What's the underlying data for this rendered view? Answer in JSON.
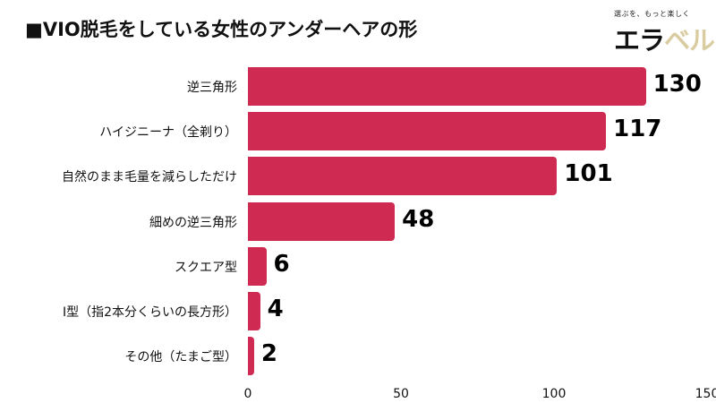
{
  "header": {
    "title": "■VIO脱毛をしている女性のアンダーヘアの形"
  },
  "logo": {
    "tagline": "選ぶを、もっと楽しく",
    "mark_part1": "エラ",
    "mark_part2": "ベル",
    "colors": {
      "part1": "#111111",
      "part2": "#d9cca0"
    }
  },
  "chart_data": {
    "type": "bar",
    "orientation": "horizontal",
    "title": "■VIO脱毛をしている女性のアンダーヘアの形",
    "categories": [
      "逆三角形",
      "ハイジニーナ（全剃り）",
      "自然のまま毛量を減らしただけ",
      "細めの逆三角形",
      "スクエア型",
      "I型（指2本分くらいの長方形）",
      "その他（たまご型）"
    ],
    "values": [
      130,
      117,
      101,
      48,
      6,
      4,
      2
    ],
    "value_labels": [
      "130",
      "117",
      "101",
      "48",
      "6",
      "4",
      "2"
    ],
    "xlabel": "",
    "ylabel": "",
    "xlim": [
      0,
      150
    ],
    "xticks": [
      "0",
      "50",
      "100",
      "150"
    ],
    "grid": false,
    "legend": null,
    "bar_color": "#cf2a52"
  }
}
